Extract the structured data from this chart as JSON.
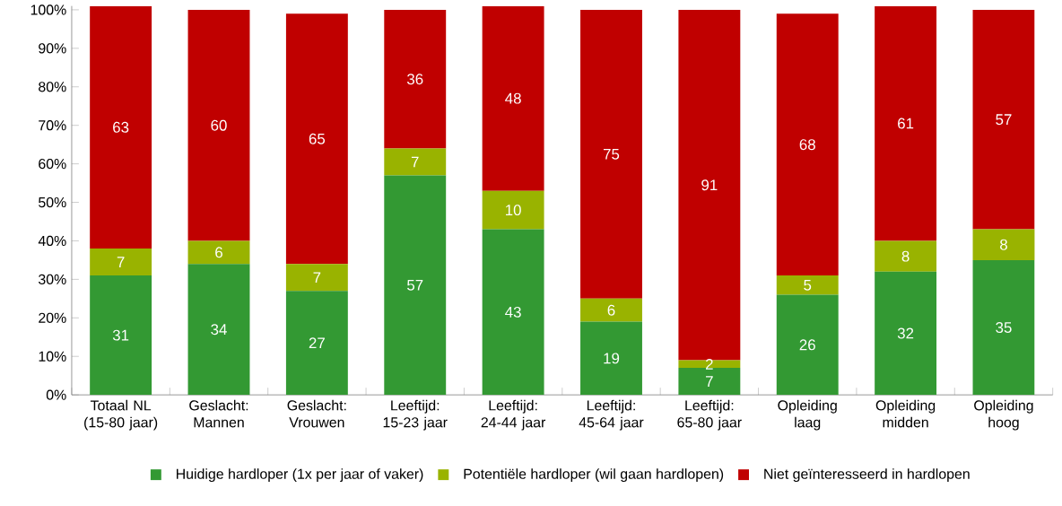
{
  "chart_data": {
    "type": "bar",
    "stacked": true,
    "data_labels": true,
    "legend": "bottom",
    "grid": false,
    "categories": [
      "Totaal NL (15-80 jaar)",
      "Geslacht: Mannen",
      "Geslacht: Vrouwen",
      "Leeftijd: 15-23 jaar",
      "Leeftijd: 24-44 jaar",
      "Leeftijd: 45-64 jaar",
      "Leeftijd: 65-80 jaar",
      "Opleiding laag",
      "Opleiding midden",
      "Opleiding hoog"
    ],
    "series": [
      {
        "name": "Huidige hardloper (1x per jaar of vaker)",
        "color": "#339933",
        "values": [
          31,
          34,
          27,
          57,
          43,
          19,
          7,
          26,
          32,
          35
        ]
      },
      {
        "name": "Potentiële hardloper (wil gaan hardlopen)",
        "color": "#99b300",
        "values": [
          7,
          6,
          7,
          7,
          10,
          6,
          2,
          5,
          8,
          8
        ]
      },
      {
        "name": "Niet geïnteresseerd in hardlopen",
        "color": "#c00000",
        "values": [
          63,
          60,
          65,
          36,
          48,
          75,
          91,
          68,
          61,
          57
        ]
      }
    ],
    "ylim": [
      0,
      101
    ],
    "yticks": [
      {
        "value": 0,
        "label": "0%"
      },
      {
        "value": 10,
        "label": "10%"
      },
      {
        "value": 20,
        "label": "20%"
      },
      {
        "value": 30,
        "label": "30%"
      },
      {
        "value": 40,
        "label": "40%"
      },
      {
        "value": 50,
        "label": "50%"
      },
      {
        "value": 60,
        "label": "60%"
      },
      {
        "value": 70,
        "label": "70%"
      },
      {
        "value": 80,
        "label": "80%"
      },
      {
        "value": 90,
        "label": "90%"
      },
      {
        "value": 100,
        "label": "100%"
      }
    ]
  }
}
